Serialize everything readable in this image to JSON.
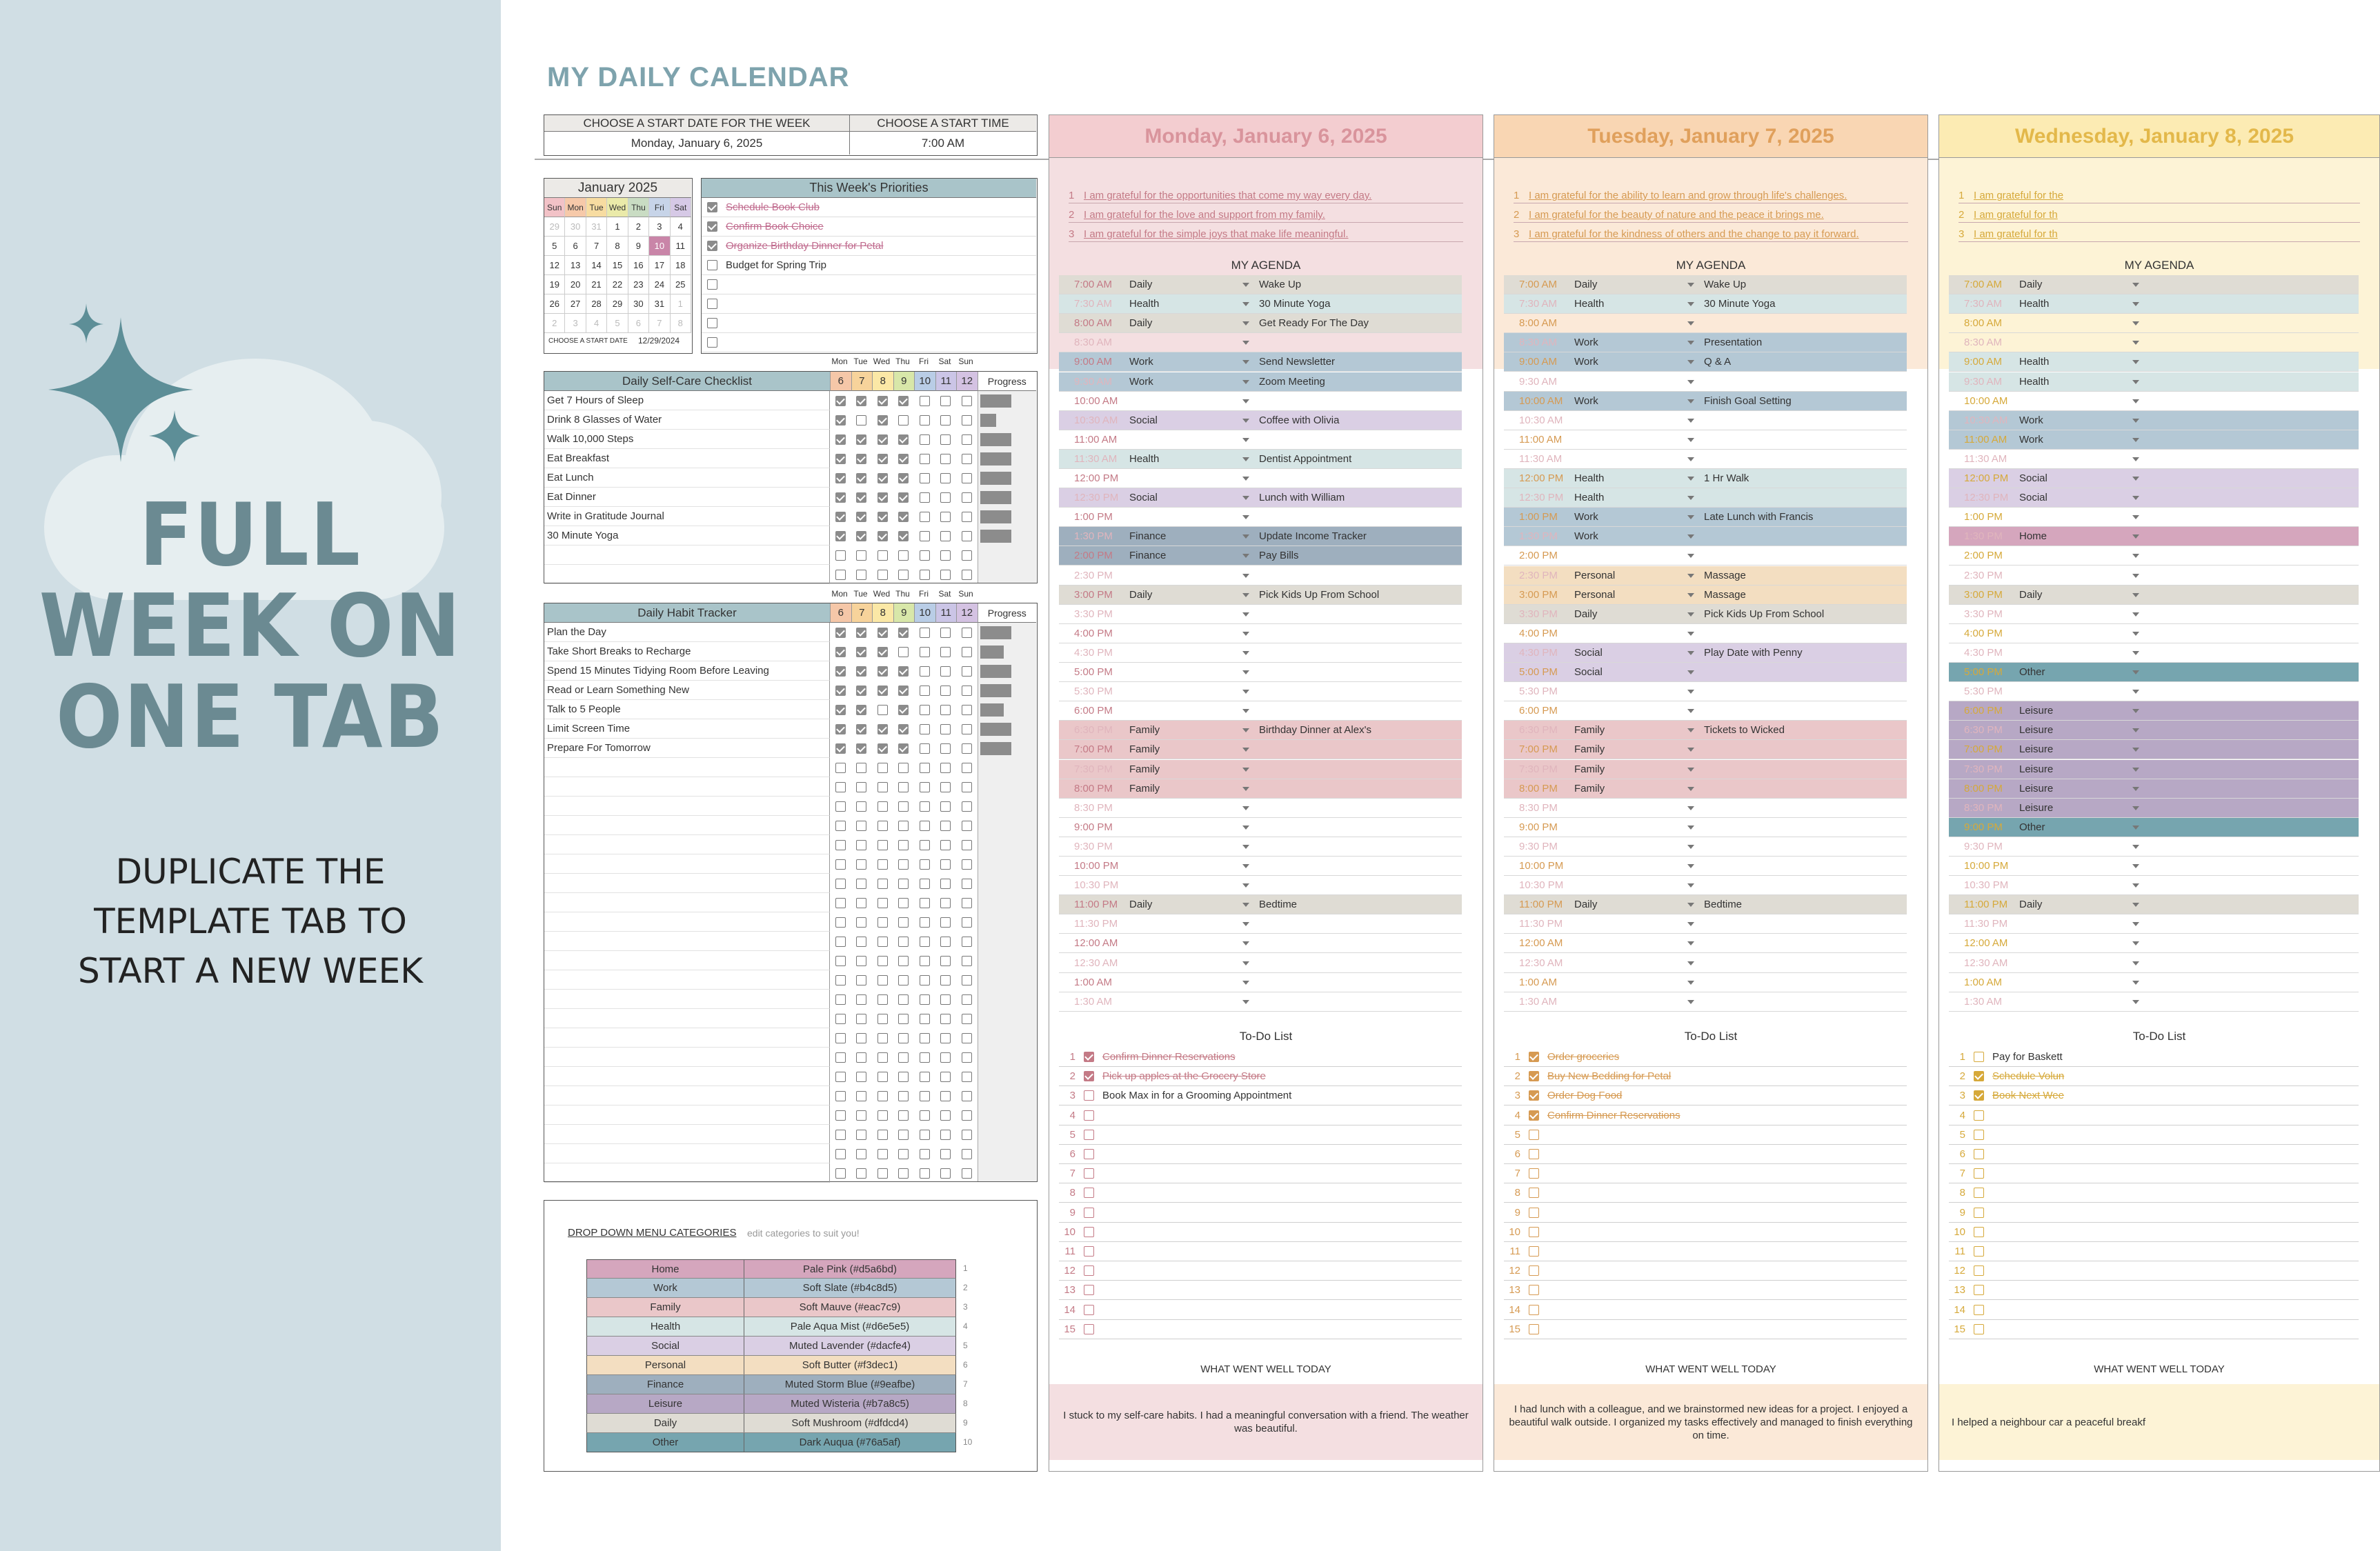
{
  "promo": {
    "big_lines": [
      "FULL",
      "WEEK ON",
      "ONE TAB"
    ],
    "small_lines": [
      "DUPLICATE THE",
      "TEMPLATE TAB TO",
      "START A NEW WEEK"
    ],
    "accent": "#5d8e97"
  },
  "sheet": {
    "title": "MY DAILY CALENDAR",
    "start_date_label": "CHOOSE A START DATE FOR THE WEEK",
    "start_date_value": "Monday, January 6, 2025",
    "start_time_label": "CHOOSE A START TIME",
    "start_time_value": "7:00 AM"
  },
  "mini_calendar": {
    "title": "January  2025",
    "weekdays": [
      "Sun",
      "Mon",
      "Tue",
      "Wed",
      "Thu",
      "Fri",
      "Sat"
    ],
    "weeks": [
      [
        "29",
        "30",
        "31",
        "1",
        "2",
        "3",
        "4"
      ],
      [
        "5",
        "6",
        "7",
        "8",
        "9",
        "10",
        "11"
      ],
      [
        "12",
        "13",
        "14",
        "15",
        "16",
        "17",
        "18"
      ],
      [
        "19",
        "20",
        "21",
        "22",
        "23",
        "24",
        "25"
      ],
      [
        "26",
        "27",
        "28",
        "29",
        "30",
        "31",
        "1"
      ],
      [
        "2",
        "3",
        "4",
        "5",
        "6",
        "7",
        "8"
      ]
    ],
    "footer_label": "CHOOSE A START DATE",
    "footer_value": "12/29/2024"
  },
  "priorities": {
    "title": "This Week's Priorities",
    "items": [
      {
        "text": "Schedule Book Club",
        "done": true
      },
      {
        "text": "Confirm Book Choice",
        "done": true
      },
      {
        "text": "Organize Birthday Dinner for Petal",
        "done": true
      },
      {
        "text": "Budget for Spring Trip",
        "done": false
      },
      {
        "text": "",
        "done": false
      },
      {
        "text": "",
        "done": false
      },
      {
        "text": "",
        "done": false
      },
      {
        "text": "",
        "done": false
      }
    ]
  },
  "tracker_days": [
    "Mon",
    "Tue",
    "Wed",
    "Thu",
    "Fri",
    "Sat",
    "Sun"
  ],
  "tracker_dates": [
    "6",
    "7",
    "8",
    "9",
    "10",
    "11",
    "12"
  ],
  "selfcare": {
    "title": "Daily Self-Care Checklist",
    "progress_label": "Progress",
    "items": [
      {
        "text": "Get 7 Hours of Sleep",
        "checks": [
          true,
          true,
          true,
          true,
          false,
          false,
          false
        ],
        "progress": 0.57
      },
      {
        "text": "Drink 8 Glasses of Water",
        "checks": [
          true,
          false,
          true,
          false,
          false,
          false,
          false
        ],
        "progress": 0.29
      },
      {
        "text": "Walk 10,000 Steps",
        "checks": [
          true,
          true,
          true,
          true,
          false,
          false,
          false
        ],
        "progress": 0.57
      },
      {
        "text": "Eat Breakfast",
        "checks": [
          true,
          true,
          true,
          true,
          false,
          false,
          false
        ],
        "progress": 0.57
      },
      {
        "text": "Eat Lunch",
        "checks": [
          true,
          true,
          true,
          true,
          false,
          false,
          false
        ],
        "progress": 0.57
      },
      {
        "text": "Eat Dinner",
        "checks": [
          true,
          true,
          true,
          true,
          false,
          false,
          false
        ],
        "progress": 0.57
      },
      {
        "text": "Write in Gratitude Journal",
        "checks": [
          true,
          true,
          true,
          true,
          false,
          false,
          false
        ],
        "progress": 0.57
      },
      {
        "text": "30 Minute Yoga",
        "checks": [
          true,
          true,
          true,
          true,
          false,
          false,
          false
        ],
        "progress": 0.57
      },
      {
        "text": "",
        "checks": [
          false,
          false,
          false,
          false,
          false,
          false,
          false
        ],
        "progress": 0
      },
      {
        "text": "",
        "checks": [
          false,
          false,
          false,
          false,
          false,
          false,
          false
        ],
        "progress": 0
      }
    ]
  },
  "habits": {
    "title": "Daily Habit Tracker",
    "progress_label": "Progress",
    "items": [
      {
        "text": "Plan the Day",
        "checks": [
          true,
          true,
          true,
          true,
          false,
          false,
          false
        ],
        "progress": 0.57
      },
      {
        "text": "Take Short Breaks to Recharge",
        "checks": [
          true,
          true,
          true,
          false,
          false,
          false,
          false
        ],
        "progress": 0.43
      },
      {
        "text": "Spend 15 Minutes Tidying Room Before Leaving",
        "checks": [
          true,
          true,
          true,
          true,
          false,
          false,
          false
        ],
        "progress": 0.57
      },
      {
        "text": "Read or Learn Something New",
        "checks": [
          true,
          true,
          true,
          true,
          false,
          false,
          false
        ],
        "progress": 0.57
      },
      {
        "text": "Talk to 5 People",
        "checks": [
          true,
          true,
          false,
          true,
          false,
          false,
          false
        ],
        "progress": 0.43
      },
      {
        "text": "Limit Screen Time",
        "checks": [
          true,
          true,
          true,
          true,
          false,
          false,
          false
        ],
        "progress": 0.57
      },
      {
        "text": "Prepare For Tomorrow",
        "checks": [
          true,
          true,
          true,
          true,
          false,
          false,
          false
        ],
        "progress": 0.57
      }
    ],
    "empty_rows": 22
  },
  "legend": {
    "title": "DROP DOWN MENU CATEGORIES",
    "hint": "edit categories to suit you!",
    "rows": [
      {
        "name": "Home",
        "color_label": "Pale Pink (#d5a6bd)",
        "hex": "#d5a6bd"
      },
      {
        "name": "Work",
        "color_label": "Soft Slate (#b4c8d5)",
        "hex": "#b4c8d5"
      },
      {
        "name": "Family",
        "color_label": "Soft Mauve (#eac7c9)",
        "hex": "#eac7c9"
      },
      {
        "name": "Health",
        "color_label": "Pale Aqua Mist (#d6e5e5)",
        "hex": "#d6e5e5"
      },
      {
        "name": "Social",
        "color_label": "Muted Lavender (#dacfe4)",
        "hex": "#dacfe4"
      },
      {
        "name": "Personal",
        "color_label": "Soft Butter (#f3dec1)",
        "hex": "#f3dec1"
      },
      {
        "name": "Finance",
        "color_label": "Muted Storm Blue (#9eafbe)",
        "hex": "#9eafbe"
      },
      {
        "name": "Leisure",
        "color_label": "Muted Wisteria (#b7a8c5)",
        "hex": "#b7a8c5"
      },
      {
        "name": "Daily",
        "color_label": "Soft Mushroom (#dfdcd4)",
        "hex": "#dfdcd4"
      },
      {
        "name": "Other",
        "color_label": "Dark Auqua (#76a5af)",
        "hex": "#76a5af"
      }
    ]
  },
  "times": [
    "7:00 AM",
    "7:30 AM",
    "8:00 AM",
    "8:30 AM",
    "9:00 AM",
    "9:30 AM",
    "10:00 AM",
    "10:30 AM",
    "11:00 AM",
    "11:30 AM",
    "12:00 PM",
    "12:30 PM",
    "1:00 PM",
    "1:30 PM",
    "2:00 PM",
    "2:30 PM",
    "3:00 PM",
    "3:30 PM",
    "4:00 PM",
    "4:30 PM",
    "5:00 PM",
    "5:30 PM",
    "6:00 PM",
    "6:30 PM",
    "7:00 PM",
    "7:30 PM",
    "8:00 PM",
    "8:30 PM",
    "9:00 PM",
    "9:30 PM",
    "10:00 PM",
    "10:30 PM",
    "11:00 PM",
    "11:30 PM",
    "12:00 AM",
    "12:30 AM",
    "1:00 AM",
    "1:30 AM"
  ],
  "agenda_label": "MY AGENDA",
  "todo_label": "To-Do List",
  "well_label": "WHAT WENT WELL TODAY",
  "days": [
    {
      "title": "Monday, January 6, 2025",
      "title_color": "#d9949c",
      "bg": "#f4dfe1",
      "title_bg": "#f3cdd0",
      "accent": "#c47a86",
      "gratitude": [
        "I am grateful for the opportunities that come my way every day.",
        "I am grateful for the love and support from my family.",
        "I am grateful for the simple joys that make life meaningful."
      ],
      "agenda": {
        "0": [
          "Daily",
          "Wake Up"
        ],
        "1": [
          "Health",
          "30 Minute Yoga"
        ],
        "2": [
          "Daily",
          "Get Ready For The Day"
        ],
        "4": [
          "Work",
          "Send Newsletter"
        ],
        "5": [
          "Work",
          "Zoom Meeting"
        ],
        "7": [
          "Social",
          "Coffee with Olivia"
        ],
        "9": [
          "Health",
          "Dentist Appointment"
        ],
        "11": [
          "Social",
          "Lunch with William"
        ],
        "13": [
          "Finance",
          "Update Income Tracker"
        ],
        "14": [
          "Finance",
          "Pay Bills"
        ],
        "16": [
          "Daily",
          "Pick Kids Up From School"
        ],
        "23": [
          "Family",
          "Birthday Dinner at Alex's"
        ],
        "24": [
          "Family",
          ""
        ],
        "25": [
          "Family",
          ""
        ],
        "26": [
          "Family",
          ""
        ],
        "32": [
          "Daily",
          "Bedtime"
        ]
      },
      "todos": [
        {
          "t": "Confirm Dinner Reservations",
          "d": true
        },
        {
          "t": "Pick up apples at the Grocery Store",
          "d": true
        },
        {
          "t": "Book Max in for a Grooming Appointment",
          "d": false
        }
      ],
      "well": "I stuck to my self-care habits. I had a meaningful conversation with a friend. The weather was beautiful."
    },
    {
      "title": "Tuesday, January 7, 2025",
      "title_color": "#e0a05c",
      "bg": "#fbe9d8",
      "title_bg": "#f9d6b3",
      "accent": "#d69a52",
      "gratitude": [
        "I am grateful for the ability to learn and grow through life's challenges.",
        "I am grateful for the beauty of nature and the peace it brings me.",
        "I am grateful for the kindness of others and the change to pay it forward."
      ],
      "agenda": {
        "0": [
          "Daily",
          "Wake Up"
        ],
        "1": [
          "Health",
          "30 Minute Yoga"
        ],
        "3": [
          "Work",
          "Presentation"
        ],
        "4": [
          "Work",
          "Q & A"
        ],
        "6": [
          "Work",
          "Finish Goal Setting"
        ],
        "10": [
          "Health",
          "1 Hr Walk"
        ],
        "11": [
          "Health",
          ""
        ],
        "12": [
          "Work",
          "Late Lunch with Francis"
        ],
        "13": [
          "Work",
          ""
        ],
        "15": [
          "Personal",
          "Massage"
        ],
        "16": [
          "Personal",
          "Massage"
        ],
        "17": [
          "Daily",
          "Pick Kids Up From School"
        ],
        "19": [
          "Social",
          "Play Date with Penny"
        ],
        "20": [
          "Social",
          ""
        ],
        "23": [
          "Family",
          "Tickets to Wicked"
        ],
        "24": [
          "Family",
          ""
        ],
        "25": [
          "Family",
          ""
        ],
        "26": [
          "Family",
          ""
        ],
        "32": [
          "Daily",
          "Bedtime"
        ]
      },
      "todos": [
        {
          "t": "Order groceries",
          "d": true
        },
        {
          "t": "Buy New Bedding for Petal",
          "d": true
        },
        {
          "t": "Order Dog Food",
          "d": true
        },
        {
          "t": "Confirm Dinner Reservations",
          "d": true
        }
      ],
      "well": "I had lunch with a colleague, and we brainstormed new ideas for a project. I enjoyed a beautiful walk outside. I organized my tasks effectively and managed to finish everything on time."
    },
    {
      "title": "Wednesday, January 8, 2025",
      "title_color": "#e3b84a",
      "bg": "#fdf3d6",
      "title_bg": "#fcebb3",
      "accent": "#d6a93a",
      "gratitude": [
        "I am grateful for the",
        "I am grateful for th",
        "I am grateful for th"
      ],
      "agenda": {
        "0": [
          "Daily",
          ""
        ],
        "1": [
          "Health",
          ""
        ],
        "4": [
          "Health",
          ""
        ],
        "5": [
          "Health",
          ""
        ],
        "7": [
          "Work",
          ""
        ],
        "8": [
          "Work",
          ""
        ],
        "10": [
          "Social",
          ""
        ],
        "11": [
          "Social",
          ""
        ],
        "13": [
          "Home",
          ""
        ],
        "16": [
          "Daily",
          ""
        ],
        "20": [
          "Other",
          ""
        ],
        "22": [
          "Leisure",
          ""
        ],
        "23": [
          "Leisure",
          ""
        ],
        "24": [
          "Leisure",
          ""
        ],
        "25": [
          "Leisure",
          ""
        ],
        "26": [
          "Leisure",
          ""
        ],
        "27": [
          "Leisure",
          ""
        ],
        "28": [
          "Other",
          ""
        ],
        "32": [
          "Daily",
          ""
        ]
      },
      "todos": [
        {
          "t": "Pay for Baskett",
          "d": false
        },
        {
          "t": "Schedule Volun",
          "d": true
        },
        {
          "t": "Book Next Wee",
          "d": true
        }
      ],
      "well": "I helped a neighbour car a peaceful breakf"
    }
  ]
}
